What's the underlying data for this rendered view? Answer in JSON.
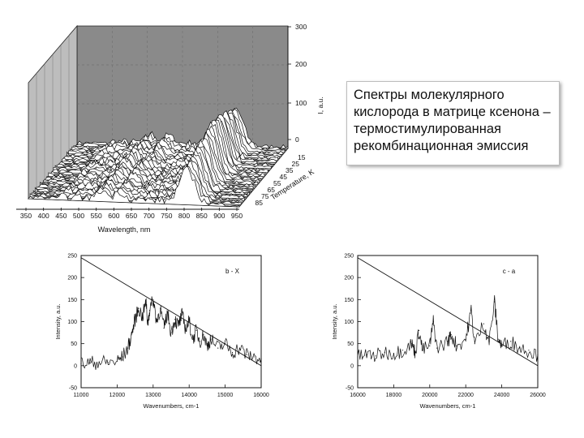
{
  "caption": "Спектры молекулярного кислорода в матрице ксенона – термостимулированная рекомбинационная эмиссия",
  "colors": {
    "line": "#111111",
    "frame": "#222222",
    "back_wall": "#8a8a8a",
    "side_wall": "#bdbdbd",
    "floor": "#d6d6d6"
  },
  "chart_data": [
    {
      "type": "area",
      "view": "3d-waterfall",
      "xlabel": "Wavelength, nm",
      "x_ticks": [
        "350",
        "400",
        "450",
        "500",
        "550",
        "600",
        "650",
        "700",
        "750",
        "800",
        "850",
        "900",
        "950"
      ],
      "xlim": [
        350,
        950
      ],
      "z_ticks": [
        "0",
        "100",
        "200",
        "300"
      ],
      "zlim": [
        0,
        300
      ],
      "zlabel": "I, a.u.",
      "depth_ticks": [
        "15",
        "25",
        "35",
        "45",
        "55",
        "65",
        "75",
        "85"
      ],
      "depth_label": "Temperature, K",
      "peaks": [
        {
          "x": 800,
          "height": 140
        },
        {
          "x": 780,
          "height": 70
        },
        {
          "x": 820,
          "height": 85
        },
        {
          "x": 560,
          "height": 45
        },
        {
          "x": 610,
          "height": 40
        }
      ]
    },
    {
      "type": "line",
      "title": "b - X",
      "xlabel": "Wavenumbers, cm-1",
      "ylabel": "Intensity, a.u.",
      "x_ticks": [
        "11000",
        "12000",
        "13000",
        "14000",
        "15000",
        "16000"
      ],
      "y_ticks": [
        "-50",
        "0",
        "50",
        "100",
        "150",
        "200",
        "250"
      ],
      "xlim": [
        11000,
        16000
      ],
      "ylim": [
        -50,
        250
      ],
      "baseline_line": {
        "x": [
          11000,
          16000
        ],
        "y": [
          245,
          0
        ]
      },
      "series": [
        {
          "values": [
            [
              11000,
              5
            ],
            [
              11250,
              6
            ],
            [
              11500,
              8
            ],
            [
              11750,
              7
            ],
            [
              12000,
              10
            ],
            [
              12150,
              20
            ],
            [
              12300,
              40
            ],
            [
              12400,
              70
            ],
            [
              12500,
              105
            ],
            [
              12600,
              130
            ],
            [
              12700,
              110
            ],
            [
              12800,
              145
            ],
            [
              12850,
              95
            ],
            [
              12900,
              125
            ],
            [
              13000,
              150
            ],
            [
              13100,
              100
            ],
            [
              13200,
              130
            ],
            [
              13300,
              85
            ],
            [
              13400,
              120
            ],
            [
              13500,
              75
            ],
            [
              13600,
              105
            ],
            [
              13700,
              90
            ],
            [
              13800,
              115
            ],
            [
              13900,
              85
            ],
            [
              14000,
              100
            ],
            [
              14100,
              60
            ],
            [
              14200,
              80
            ],
            [
              14300,
              55
            ],
            [
              14400,
              70
            ],
            [
              14500,
              45
            ],
            [
              14600,
              60
            ],
            [
              14800,
              40
            ],
            [
              15000,
              50
            ],
            [
              15200,
              30
            ],
            [
              15400,
              40
            ],
            [
              15600,
              25
            ],
            [
              15800,
              20
            ],
            [
              16000,
              15
            ]
          ]
        }
      ]
    },
    {
      "type": "line",
      "title": "c - a",
      "xlabel": "Wavenumbers, cm-1",
      "ylabel": "Intensity, a.u.",
      "x_ticks": [
        "16000",
        "18000",
        "20000",
        "22000",
        "24000",
        "26000"
      ],
      "y_ticks": [
        "-50",
        "0",
        "50",
        "100",
        "150",
        "200",
        "250"
      ],
      "xlim": [
        16000,
        26000
      ],
      "ylim": [
        -50,
        250
      ],
      "baseline_line": {
        "x": [
          16000,
          26000
        ],
        "y": [
          245,
          0
        ]
      },
      "series": [
        {
          "values": [
            [
              16000,
              20
            ],
            [
              16500,
              25
            ],
            [
              17000,
              22
            ],
            [
              17500,
              30
            ],
            [
              18000,
              28
            ],
            [
              18500,
              35
            ],
            [
              19000,
              50
            ],
            [
              19200,
              30
            ],
            [
              19400,
              80
            ],
            [
              19600,
              35
            ],
            [
              20000,
              45
            ],
            [
              20200,
              100
            ],
            [
              20400,
              40
            ],
            [
              21000,
              55
            ],
            [
              21200,
              70
            ],
            [
              21500,
              45
            ],
            [
              22000,
              60
            ],
            [
              22300,
              125
            ],
            [
              22500,
              50
            ],
            [
              23000,
              95
            ],
            [
              23300,
              55
            ],
            [
              23600,
              145
            ],
            [
              23800,
              60
            ],
            [
              24000,
              45
            ],
            [
              24500,
              55
            ],
            [
              25000,
              40
            ],
            [
              25500,
              35
            ],
            [
              26000,
              25
            ]
          ]
        }
      ]
    }
  ]
}
